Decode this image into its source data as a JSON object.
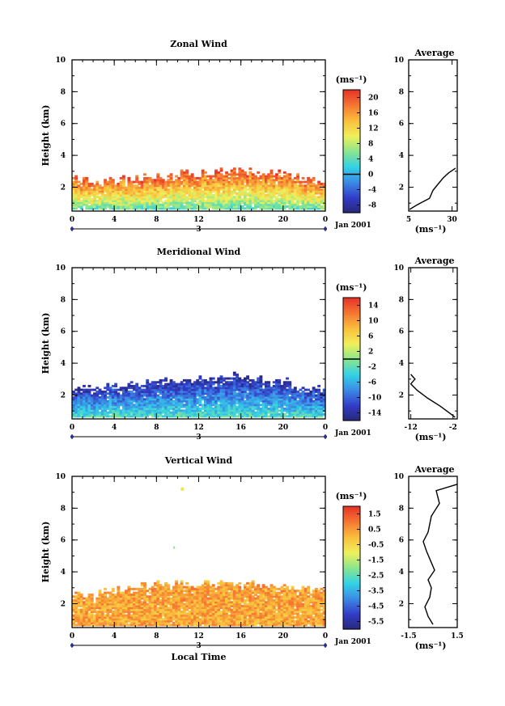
{
  "chart_data": [
    {
      "type": "heatmap",
      "title": "Zonal Wind",
      "xlabel": "",
      "ylabel": "Height (km)",
      "xlim": [
        0,
        24
      ],
      "ylim": [
        0.5,
        10
      ],
      "x_ticks": [
        "0",
        "4",
        "8",
        "12",
        "16",
        "20",
        "0"
      ],
      "y_ticks": [
        "2",
        "4",
        "6",
        "8",
        "10"
      ],
      "date_marker": "3",
      "date_label": "Jan 2001",
      "colorbar": {
        "unit": "(ms⁻¹)",
        "min": -10,
        "max": 22,
        "ticks": [
          "20",
          "16",
          "12",
          "8",
          "4",
          "0",
          "-4",
          "-8"
        ],
        "contour_level": 0
      },
      "field": {
        "top_height_by_hour": [
          [
            0,
            2.5
          ],
          [
            2,
            2.4
          ],
          [
            4,
            2.5
          ],
          [
            6,
            2.6
          ],
          [
            8,
            2.7
          ],
          [
            10,
            2.8
          ],
          [
            12,
            2.9
          ],
          [
            14,
            3.0
          ],
          [
            16,
            3.1
          ],
          [
            18,
            3.0
          ],
          [
            20,
            2.9
          ],
          [
            22,
            2.6
          ],
          [
            24,
            2.4
          ]
        ],
        "lower_level_value": 4,
        "upper_level_value": 20
      },
      "average_profile": {
        "title": "Average",
        "xlabel": "(ms⁻¹)",
        "x_ticks": [
          "5",
          "30"
        ],
        "xlim": [
          5,
          33
        ],
        "y_ticks": [
          "2",
          "4",
          "6",
          "8",
          "10"
        ],
        "points": [
          [
            5.5,
            0.6
          ],
          [
            10,
            0.9
          ],
          [
            17,
            1.3
          ],
          [
            19,
            1.8
          ],
          [
            22,
            2.2
          ],
          [
            25,
            2.6
          ],
          [
            28,
            2.9
          ],
          [
            32,
            3.2
          ]
        ]
      }
    },
    {
      "type": "heatmap",
      "title": "Meridional Wind",
      "xlabel": "",
      "ylabel": "Height (km)",
      "xlim": [
        0,
        24
      ],
      "ylim": [
        0.5,
        10
      ],
      "x_ticks": [
        "0",
        "4",
        "8",
        "12",
        "16",
        "20",
        "0"
      ],
      "y_ticks": [
        "2",
        "4",
        "6",
        "8",
        "10"
      ],
      "date_marker": "3",
      "date_label": "Jan 2001",
      "colorbar": {
        "unit": "(ms⁻¹)",
        "min": -16,
        "max": 16,
        "ticks": [
          "14",
          "10",
          "6",
          "2",
          "-2",
          "-6",
          "-10",
          "-14"
        ],
        "contour_level": 0
      },
      "field": {
        "top_height_by_hour": [
          [
            0,
            2.5
          ],
          [
            2,
            2.4
          ],
          [
            4,
            2.6
          ],
          [
            6,
            2.7
          ],
          [
            8,
            2.8
          ],
          [
            10,
            2.9
          ],
          [
            12,
            3.0
          ],
          [
            14,
            3.1
          ],
          [
            16,
            3.2
          ],
          [
            18,
            3.0
          ],
          [
            20,
            2.9
          ],
          [
            22,
            2.6
          ],
          [
            24,
            2.4
          ]
        ],
        "lower_level_value": -2,
        "upper_level_value": -14
      },
      "average_profile": {
        "title": "Average",
        "xlabel": "(ms⁻¹)",
        "x_ticks": [
          "-12",
          "-2"
        ],
        "xlim": [
          -12.5,
          -1
        ],
        "y_ticks": [
          "2",
          "4",
          "6",
          "8",
          "10"
        ],
        "points": [
          [
            -1.5,
            0.6
          ],
          [
            -3,
            0.9
          ],
          [
            -5,
            1.3
          ],
          [
            -8,
            1.8
          ],
          [
            -10.5,
            2.3
          ],
          [
            -12,
            2.7
          ],
          [
            -11,
            3.0
          ],
          [
            -12,
            3.3
          ]
        ]
      }
    },
    {
      "type": "heatmap",
      "title": "Vertical Wind",
      "xlabel": "Local Time",
      "ylabel": "Height (km)",
      "xlim": [
        0,
        24
      ],
      "ylim": [
        0.5,
        10
      ],
      "x_ticks": [
        "0",
        "4",
        "8",
        "12",
        "16",
        "20",
        "0"
      ],
      "y_ticks": [
        "2",
        "4",
        "6",
        "8",
        "10"
      ],
      "date_marker": "3",
      "date_label": "Jan 2001",
      "colorbar": {
        "unit": "(ms⁻¹)",
        "min": -7,
        "max": 2.5,
        "ticks": [
          "1.5",
          "0.5",
          "-0.5",
          "-1.5",
          "-2.5",
          "-3.5",
          "-4.5",
          "-5.5"
        ],
        "contour_level": null
      },
      "field": {
        "top_height_by_hour": [
          [
            0,
            2.6
          ],
          [
            2,
            2.6
          ],
          [
            4,
            3.0
          ],
          [
            6,
            3.1
          ],
          [
            8,
            3.2
          ],
          [
            10,
            3.2
          ],
          [
            12,
            3.3
          ],
          [
            14,
            3.3
          ],
          [
            16,
            3.3
          ],
          [
            18,
            3.2
          ],
          [
            20,
            3.1
          ],
          [
            22,
            3.0
          ],
          [
            24,
            3.0
          ]
        ],
        "lower_level_value": 0.4,
        "upper_level_value": 0.6
      },
      "average_profile": {
        "title": "Average",
        "xlabel": "(ms⁻¹)",
        "x_ticks": [
          "-1.5",
          "1.5"
        ],
        "xlim": [
          -1.5,
          1.5
        ],
        "y_ticks": [
          "2",
          "4",
          "6",
          "8",
          "10"
        ],
        "points": [
          [
            0.0,
            0.7
          ],
          [
            -0.3,
            1.2
          ],
          [
            -0.5,
            1.8
          ],
          [
            -0.2,
            2.4
          ],
          [
            -0.1,
            3.0
          ],
          [
            -0.3,
            3.5
          ],
          [
            0.1,
            4.1
          ],
          [
            -0.4,
            5.3
          ],
          [
            -0.6,
            5.9
          ],
          [
            -0.3,
            6.5
          ],
          [
            -0.1,
            7.5
          ],
          [
            0.4,
            8.3
          ],
          [
            0.2,
            9.1
          ],
          [
            1.5,
            9.5
          ]
        ]
      }
    }
  ]
}
